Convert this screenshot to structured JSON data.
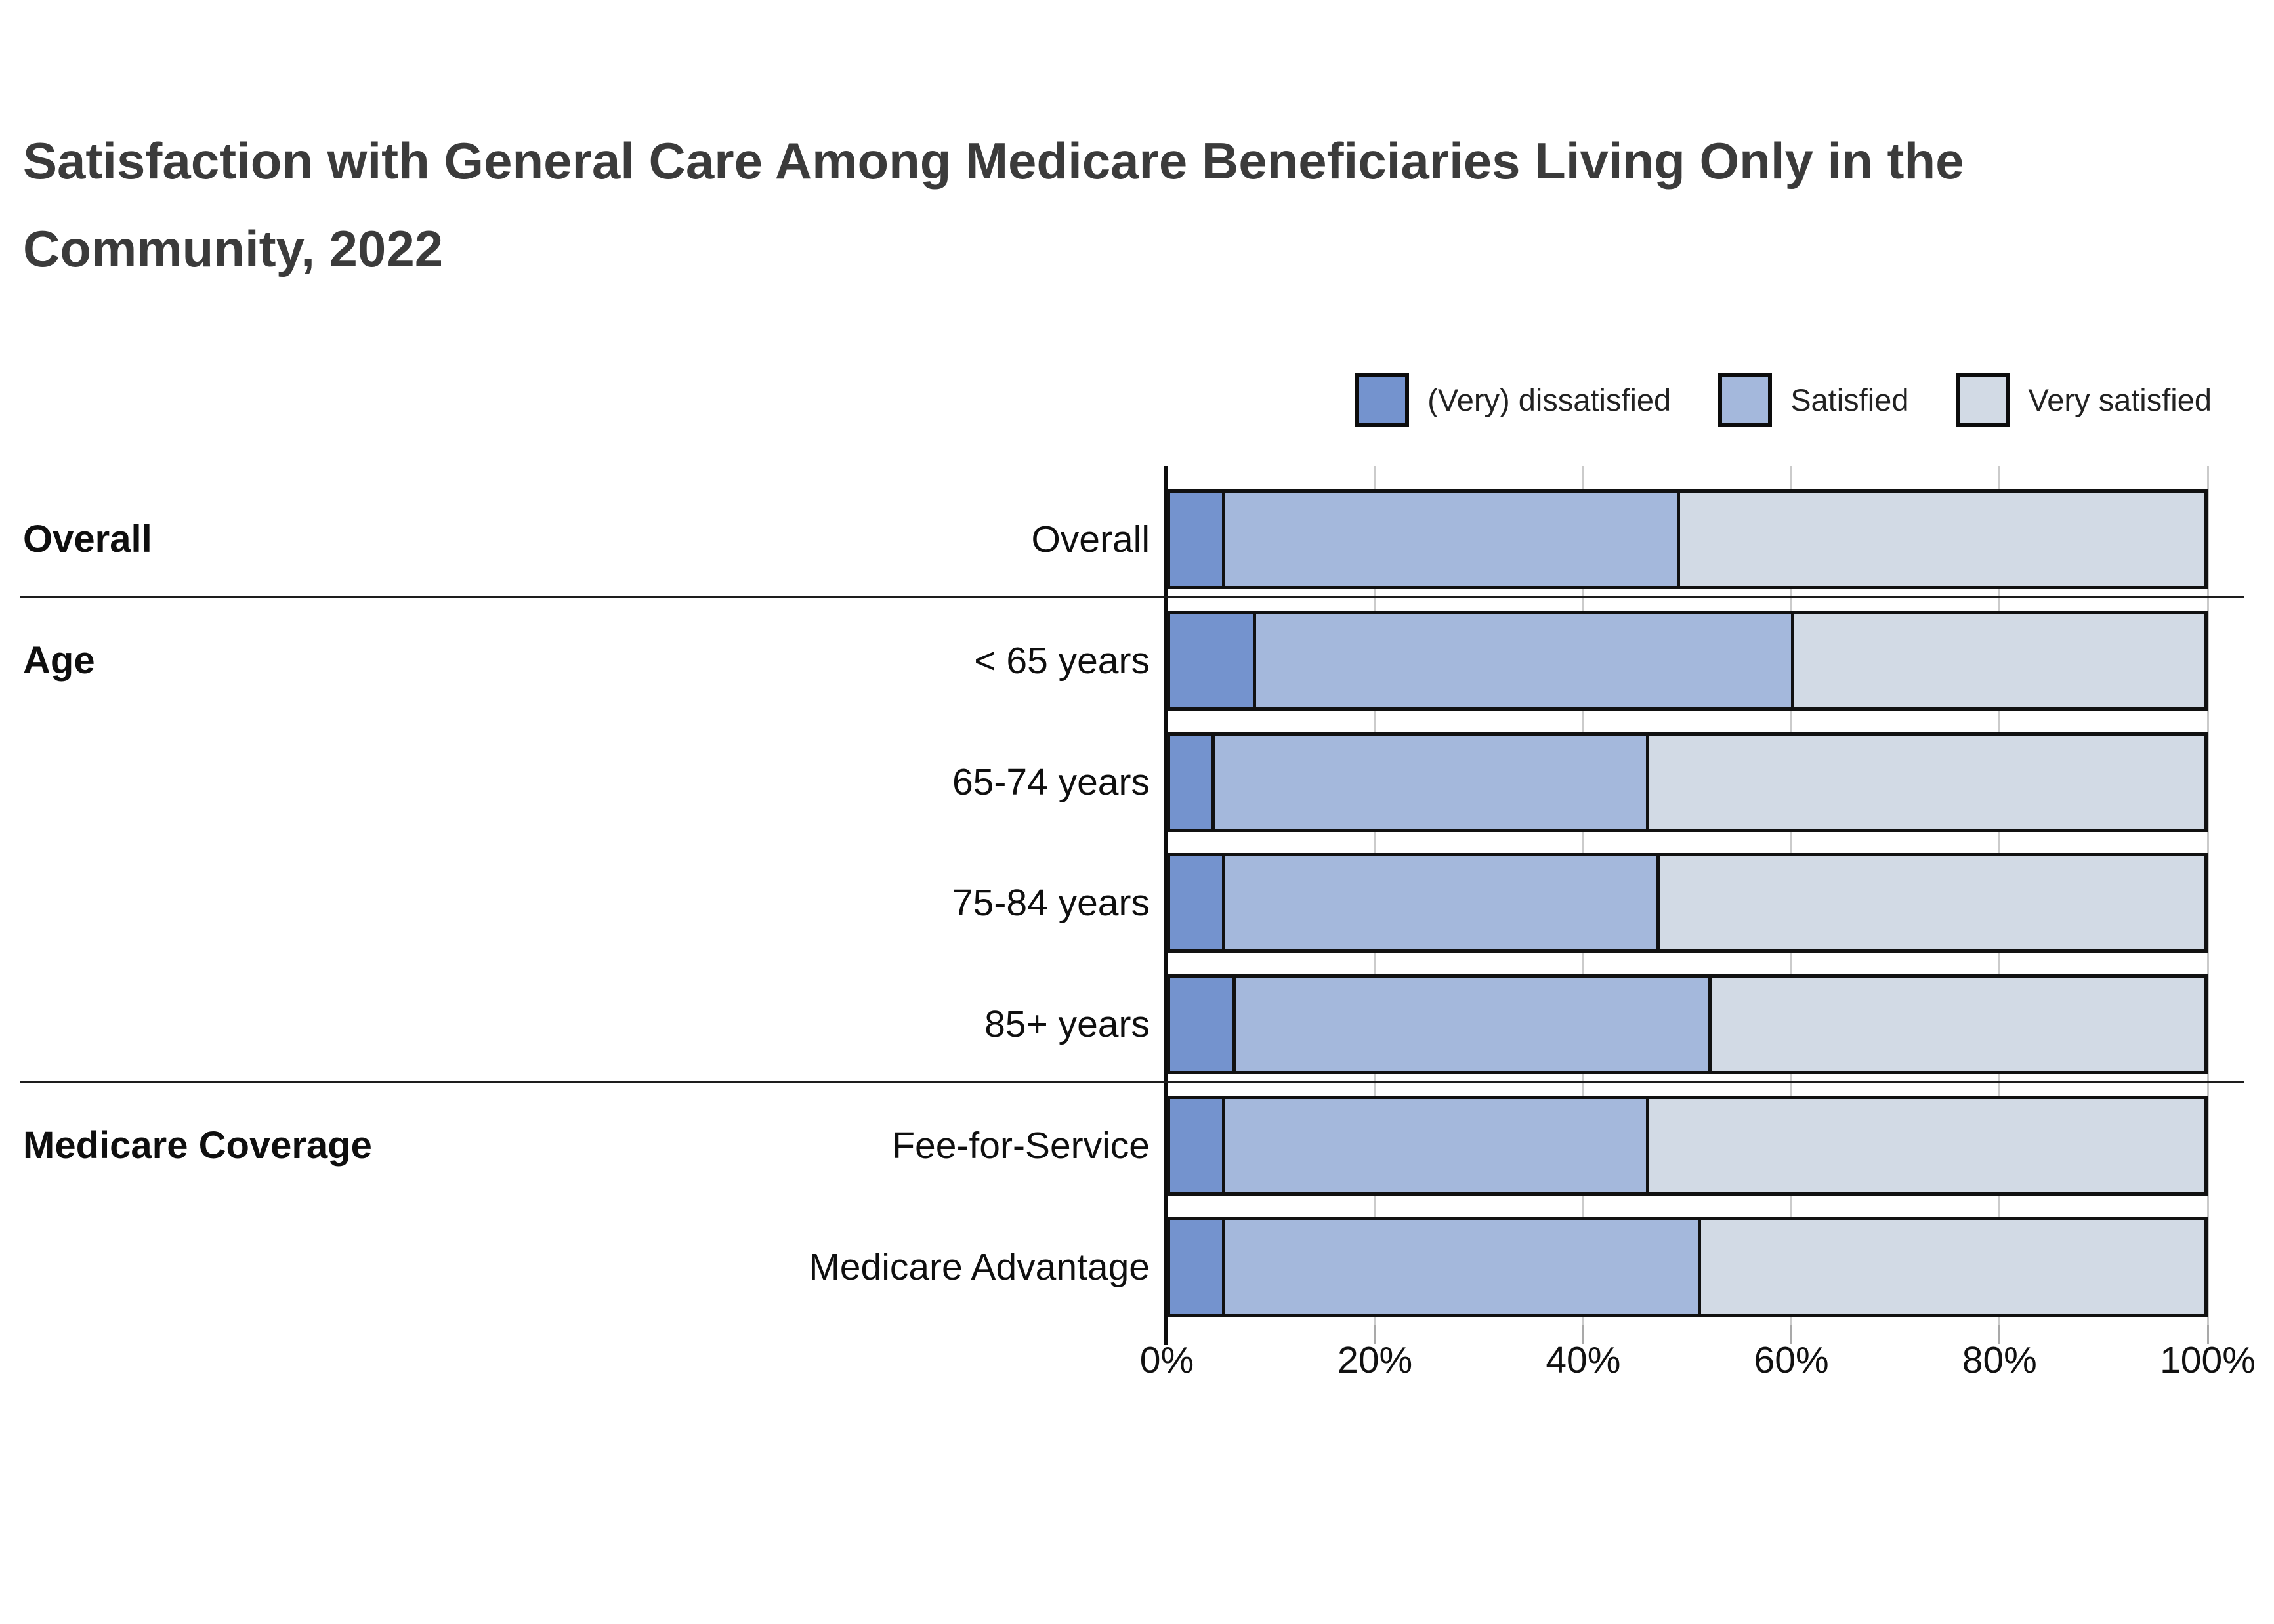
{
  "title": "Satisfaction with General Care Among Medicare Beneficiaries Living Only in the Community, 2022",
  "legend": [
    {
      "label": "(Very) dissatisfied",
      "color": "#7493ce"
    },
    {
      "label": "Satisfied",
      "color": "#a4b8dc"
    },
    {
      "label": "Very satisfied",
      "color": "#d2dae5"
    }
  ],
  "chart_data": {
    "type": "bar",
    "orientation": "horizontal",
    "stacked": true,
    "title": "Satisfaction with General Care Among Medicare Beneficiaries Living Only in the Community, 2022",
    "categories": [
      "Overall",
      "< 65 years",
      "65-74 years",
      "75-84 years",
      "85+ years",
      "Fee-for-Service",
      "Medicare Advantage"
    ],
    "groups": [
      {
        "label": "Overall",
        "start_row": 0,
        "end_row": 0
      },
      {
        "label": "Age",
        "start_row": 1,
        "end_row": 4
      },
      {
        "label": "Medicare Coverage",
        "start_row": 5,
        "end_row": 6
      }
    ],
    "series": [
      {
        "name": "(Very) dissatisfied",
        "color": "#7493ce",
        "values": [
          5,
          8,
          4,
          5,
          6,
          5,
          5
        ]
      },
      {
        "name": "Satisfied",
        "color": "#a4b8dc",
        "values": [
          44,
          52,
          42,
          42,
          46,
          41,
          46
        ]
      },
      {
        "name": "Very satisfied",
        "color": "#d2dae5",
        "values": [
          51,
          40,
          54,
          53,
          48,
          54,
          49
        ]
      }
    ],
    "x_tick_labels": [
      "0%",
      "20%",
      "40%",
      "60%",
      "80%",
      "100%"
    ],
    "x_tick_values": [
      0,
      20,
      40,
      60,
      80,
      100
    ],
    "xlim": [
      0,
      100
    ],
    "ylabel": "",
    "xlabel": "",
    "grid": "vertical-light",
    "legend_position": "top-right"
  }
}
